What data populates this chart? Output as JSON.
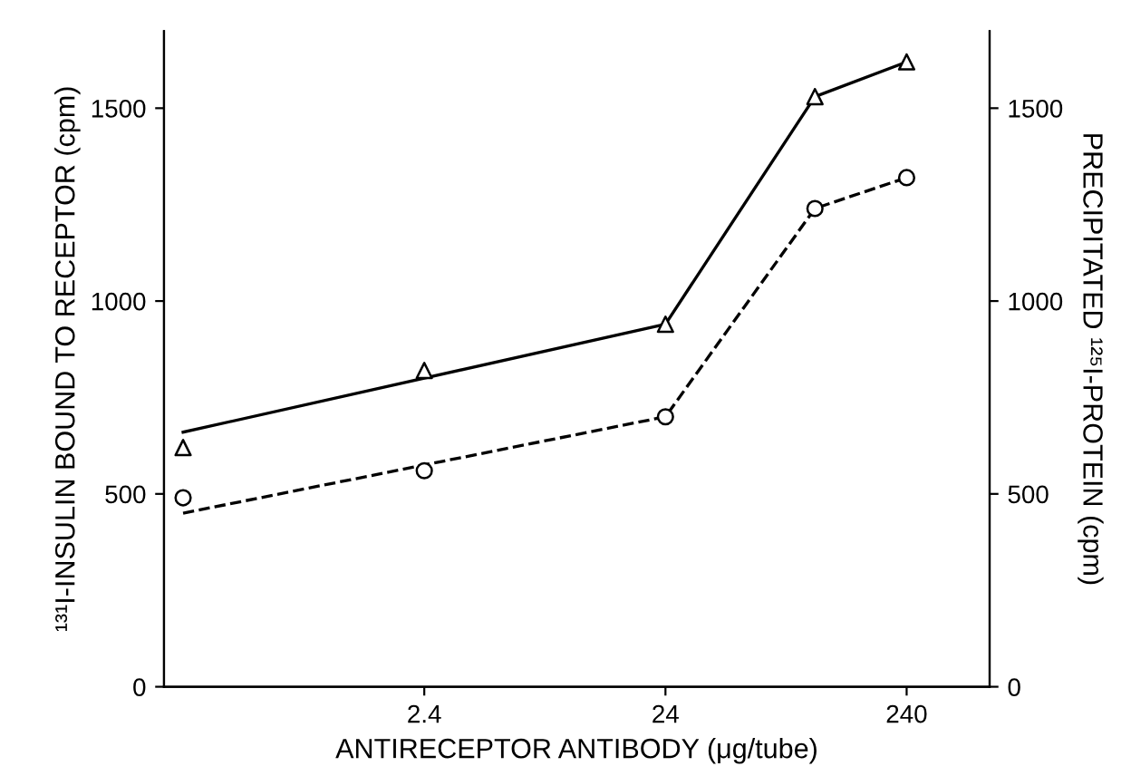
{
  "chart_data": {
    "type": "line",
    "xlabel": "ANTIRECEPTOR ANTIBODY (μg/tube)",
    "ylabel": "¹³¹I-INSULIN BOUND TO RECEPTOR (cpm)",
    "y2label": "PRECIPITATED ¹²⁵I-PROTEIN (cpm)",
    "log": "x",
    "xlim": [
      0.2,
      530
    ],
    "xticks": [
      2.4,
      24,
      240
    ],
    "ylim": [
      0,
      1700
    ],
    "yticks": [
      0,
      500,
      1000,
      1500
    ],
    "y2lim": [
      0,
      1700
    ],
    "y2ticks": [
      0,
      500,
      1000,
      1500
    ],
    "grid": false,
    "series": [
      {
        "type": "scatter",
        "marker": "triangle",
        "color": "#000000",
        "x": [
          0.24,
          2.4,
          24,
          100,
          240
        ],
        "values": [
          620,
          820,
          940,
          1530,
          1620
        ]
      },
      {
        "line_style": "solid",
        "color": "#000000",
        "x": [
          0.24,
          24,
          100,
          240
        ],
        "values": [
          660,
          940,
          1530,
          1620
        ]
      },
      {
        "type": "scatter",
        "marker": "circle",
        "color": "#000000",
        "x": [
          0.24,
          2.4,
          24,
          100,
          240
        ],
        "values": [
          490,
          560,
          700,
          1240,
          1320
        ]
      },
      {
        "line_style": "dashed",
        "color": "#000000",
        "x": [
          0.24,
          24,
          100,
          240
        ],
        "values": [
          450,
          700,
          1240,
          1320
        ]
      }
    ]
  }
}
